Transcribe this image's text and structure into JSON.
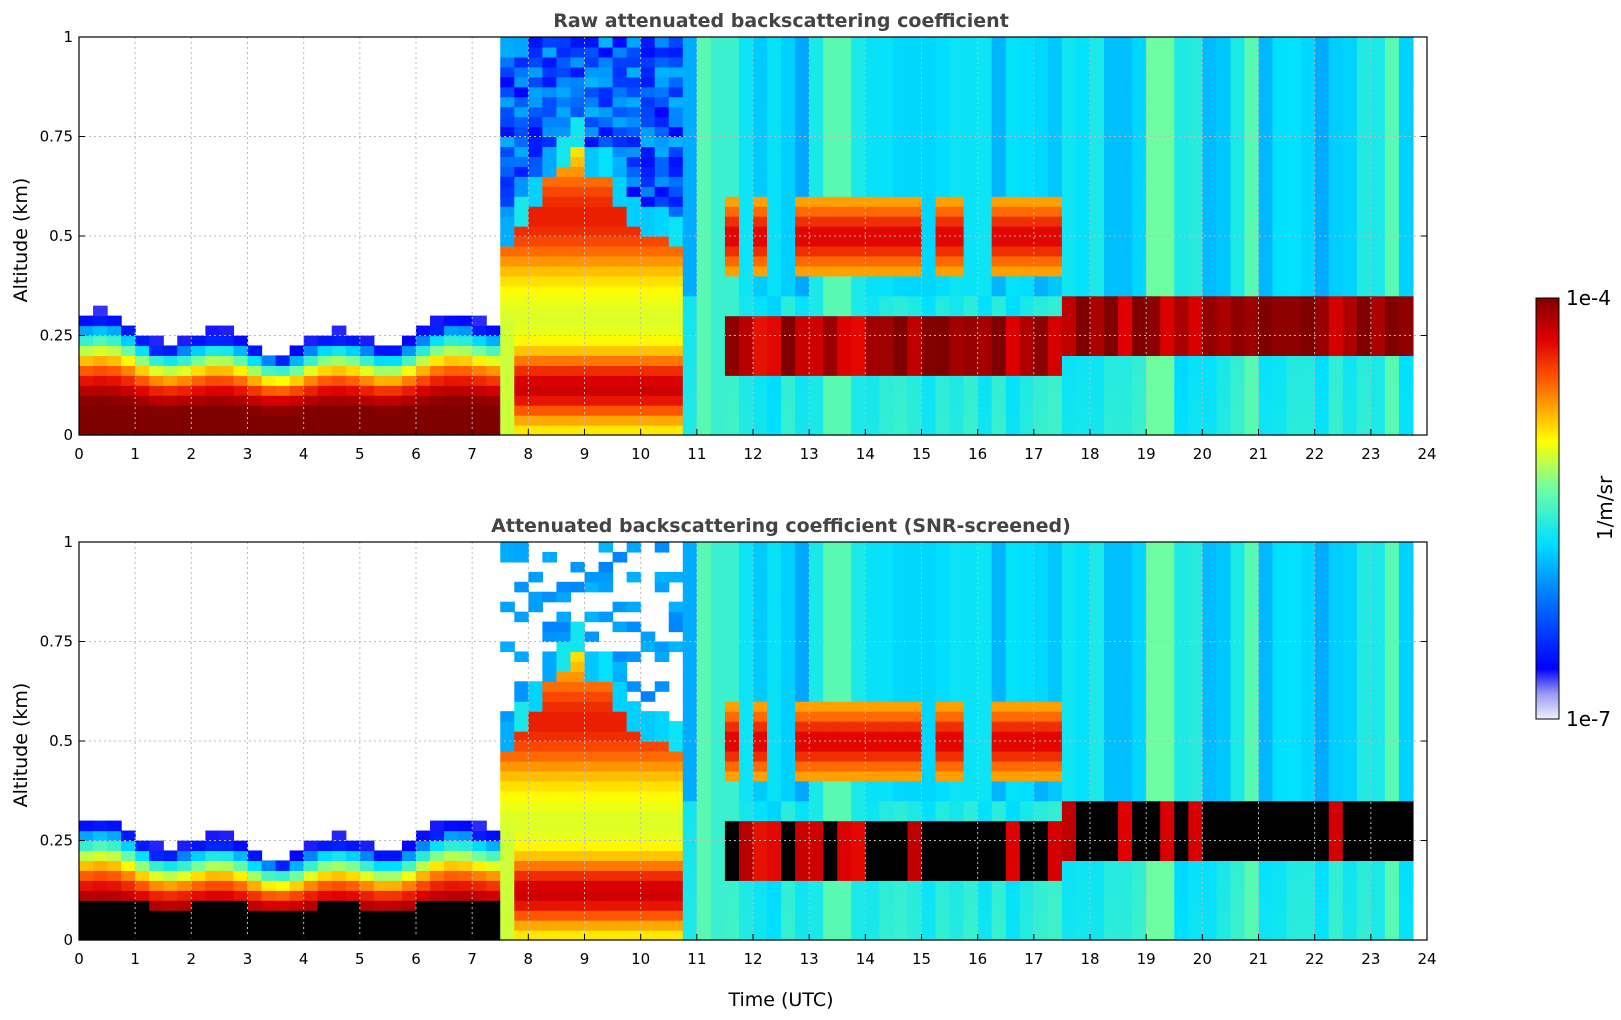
{
  "colors": {
    "colormap": "jet",
    "low_tint": "#dcdcf5",
    "saturated_screened": "#000000",
    "grid": "#bbbbbb"
  },
  "colorbar": {
    "max_label": "1e-4",
    "min_label": "1e-7",
    "unit_label": "1/m/sr",
    "scale": "log"
  },
  "chart_data": [
    {
      "type": "heatmap",
      "title": "Raw attenuated backscattering coefficient",
      "xlabel": "",
      "ylabel": "Altitude (km)",
      "xlim": [
        0,
        24
      ],
      "ylim": [
        0,
        1
      ],
      "x_ticks": [
        "0",
        "1",
        "2",
        "3",
        "4",
        "5",
        "6",
        "7",
        "8",
        "9",
        "10",
        "11",
        "12",
        "13",
        "14",
        "15",
        "16",
        "17",
        "18",
        "19",
        "20",
        "21",
        "22",
        "23",
        "24"
      ],
      "y_ticks": [
        "0",
        "0.25",
        "0.5",
        "0.75",
        "1"
      ],
      "grid": true,
      "layers": [
        {
          "name": "surface layer",
          "x": [
            0,
            7.4
          ],
          "top_km": [
            0.27,
            0.2,
            0.18,
            0.2,
            0.24,
            0.28
          ]
        },
        {
          "name": "morning aerosol/cloud",
          "x": [
            7.4,
            10.6
          ],
          "base_km": 0.08,
          "top_km": 0.72
        },
        {
          "name": "afternoon cloud layer",
          "x": [
            11.6,
            17.5
          ],
          "band_km": [
            0.15,
            0.3
          ]
        },
        {
          "name": "evening cloud layer",
          "x": [
            17.5,
            23.7
          ],
          "band_km": [
            0.2,
            0.35
          ]
        }
      ]
    },
    {
      "type": "heatmap",
      "title": "Attenuated backscattering coefficient (SNR-screened)",
      "xlabel": "Time (UTC)",
      "ylabel": "Altitude (km)",
      "xlim": [
        0,
        24
      ],
      "ylim": [
        0,
        1
      ],
      "x_ticks": [
        "0",
        "1",
        "2",
        "3",
        "4",
        "5",
        "6",
        "7",
        "8",
        "9",
        "10",
        "11",
        "12",
        "13",
        "14",
        "15",
        "16",
        "17",
        "18",
        "19",
        "20",
        "21",
        "22",
        "23",
        "24"
      ],
      "y_ticks": [
        "0",
        "0.25",
        "0.5",
        "0.75",
        "1"
      ],
      "grid": true,
      "note_values": "saturated pixels rendered black"
    }
  ]
}
